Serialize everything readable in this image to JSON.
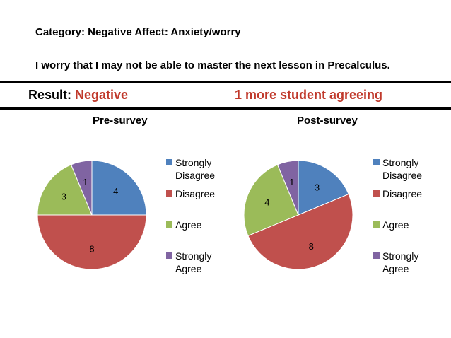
{
  "header": {
    "category": "Category: Negative Affect: Anxiety/worry",
    "question": "I worry that I may not be able to master the next lesson in Precalculus.",
    "result_label": "Result: ",
    "result_value": "Negative",
    "agree_note": "1 more student agreeing"
  },
  "colors": {
    "Strongly Disagree": "#4f81bd",
    "Disagree": "#c0504d",
    "Agree": "#9bbb59",
    "Strongly Agree": "#8064a2",
    "accent_text": "#c0392b"
  },
  "chart_data": [
    {
      "type": "pie",
      "title": "Pre-survey",
      "categories": [
        "Strongly Disagree",
        "Disagree",
        "Agree",
        "Strongly Agree"
      ],
      "values": [
        4,
        8,
        3,
        1
      ],
      "legend": [
        "Strongly Disagree",
        "Disagree",
        "Agree",
        "Strongly Agree"
      ],
      "legend_position": "right"
    },
    {
      "type": "pie",
      "title": "Post-survey",
      "categories": [
        "Strongly Disagree",
        "Disagree",
        "Agree",
        "Strongly Agree"
      ],
      "values": [
        3,
        8,
        4,
        1
      ],
      "legend": [
        "Strongly Disagree",
        "Disagree",
        "Agree",
        "Strongly Agree"
      ],
      "legend_position": "right"
    }
  ]
}
